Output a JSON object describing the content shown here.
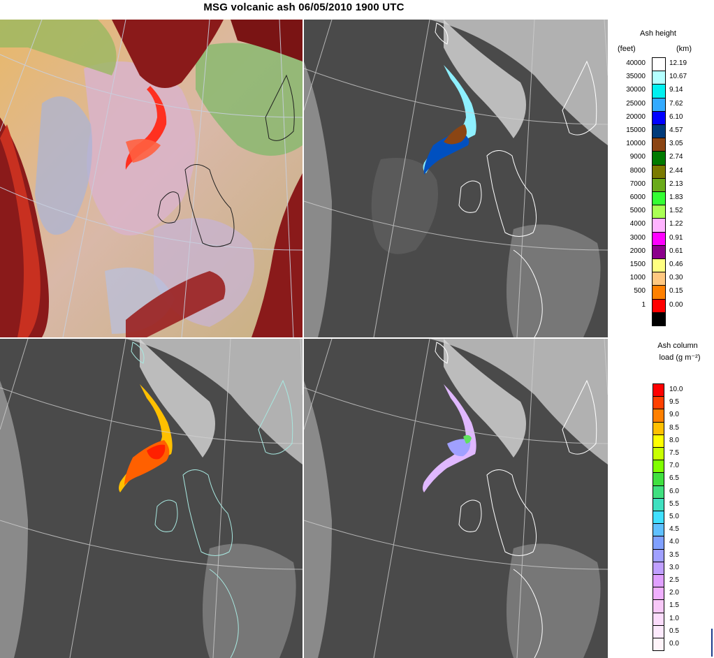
{
  "title": "MSG volcanic ash 06/05/2010 1900 UTC",
  "panels": [
    {
      "name": "ash-rgb-composite"
    },
    {
      "name": "ash-height-panel"
    },
    {
      "name": "ash-column-load-panel"
    },
    {
      "name": "ash-effective-radius-panel"
    }
  ],
  "legend_height": {
    "title": "Ash height",
    "unit_left": "(feet)",
    "unit_right": "(km)",
    "entries": [
      {
        "feet": "40000",
        "km": "12.19",
        "color": "#ffffff"
      },
      {
        "feet": "35000",
        "km": "10.67",
        "color": "#b4ffff"
      },
      {
        "feet": "30000",
        "km": "9.14",
        "color": "#00f0f0"
      },
      {
        "feet": "25000",
        "km": "7.62",
        "color": "#33aaff"
      },
      {
        "feet": "20000",
        "km": "6.10",
        "color": "#0000ff"
      },
      {
        "feet": "15000",
        "km": "4.57",
        "color": "#003a7a"
      },
      {
        "feet": "10000",
        "km": "3.05",
        "color": "#8b4513"
      },
      {
        "feet": "9000",
        "km": "2.74",
        "color": "#007a00"
      },
      {
        "feet": "8000",
        "km": "2.44",
        "color": "#7a7a00"
      },
      {
        "feet": "7000",
        "km": "2.13",
        "color": "#6aaa1a"
      },
      {
        "feet": "6000",
        "km": "1.83",
        "color": "#33ff33"
      },
      {
        "feet": "5000",
        "km": "1.52",
        "color": "#aaff55"
      },
      {
        "feet": "4000",
        "km": "1.22",
        "color": "#ffb4ff"
      },
      {
        "feet": "3000",
        "km": "0.91",
        "color": "#ff00ff"
      },
      {
        "feet": "2000",
        "km": "0.61",
        "color": "#8b008b"
      },
      {
        "feet": "1500",
        "km": "0.46",
        "color": "#ffff80"
      },
      {
        "feet": "1000",
        "km": "0.30",
        "color": "#ffc880"
      },
      {
        "feet": "500",
        "km": "0.15",
        "color": "#ff8000"
      },
      {
        "feet": "1",
        "km": "0.00",
        "color": "#ff0000"
      },
      {
        "feet": "",
        "km": "",
        "color": "#000000"
      }
    ]
  },
  "legend_load": {
    "title_line1": "Ash column",
    "title_line2": "load (g m⁻²)",
    "entries": [
      {
        "value": "10.0",
        "color": "#ff0000"
      },
      {
        "value": "9.5",
        "color": "#ff4000"
      },
      {
        "value": "9.0",
        "color": "#ff8000"
      },
      {
        "value": "8.5",
        "color": "#ffc000"
      },
      {
        "value": "8.0",
        "color": "#ffff00"
      },
      {
        "value": "7.5",
        "color": "#c8ff00"
      },
      {
        "value": "7.0",
        "color": "#80ff00"
      },
      {
        "value": "6.5",
        "color": "#40e040"
      },
      {
        "value": "6.0",
        "color": "#40e080"
      },
      {
        "value": "5.5",
        "color": "#40e0c0"
      },
      {
        "value": "5.0",
        "color": "#40e0ff"
      },
      {
        "value": "4.5",
        "color": "#60c0ff"
      },
      {
        "value": "4.0",
        "color": "#80a0ff"
      },
      {
        "value": "3.5",
        "color": "#a0a0ff"
      },
      {
        "value": "3.0",
        "color": "#c0a0ff"
      },
      {
        "value": "2.5",
        "color": "#e0a0ff"
      },
      {
        "value": "2.0",
        "color": "#f0b0ff"
      },
      {
        "value": "1.5",
        "color": "#f8c8f8"
      },
      {
        "value": "1.0",
        "color": "#fcdcfc"
      },
      {
        "value": "0.5",
        "color": "#fdeafd"
      },
      {
        "value": "0.0",
        "color": "#fff4fa"
      }
    ]
  }
}
